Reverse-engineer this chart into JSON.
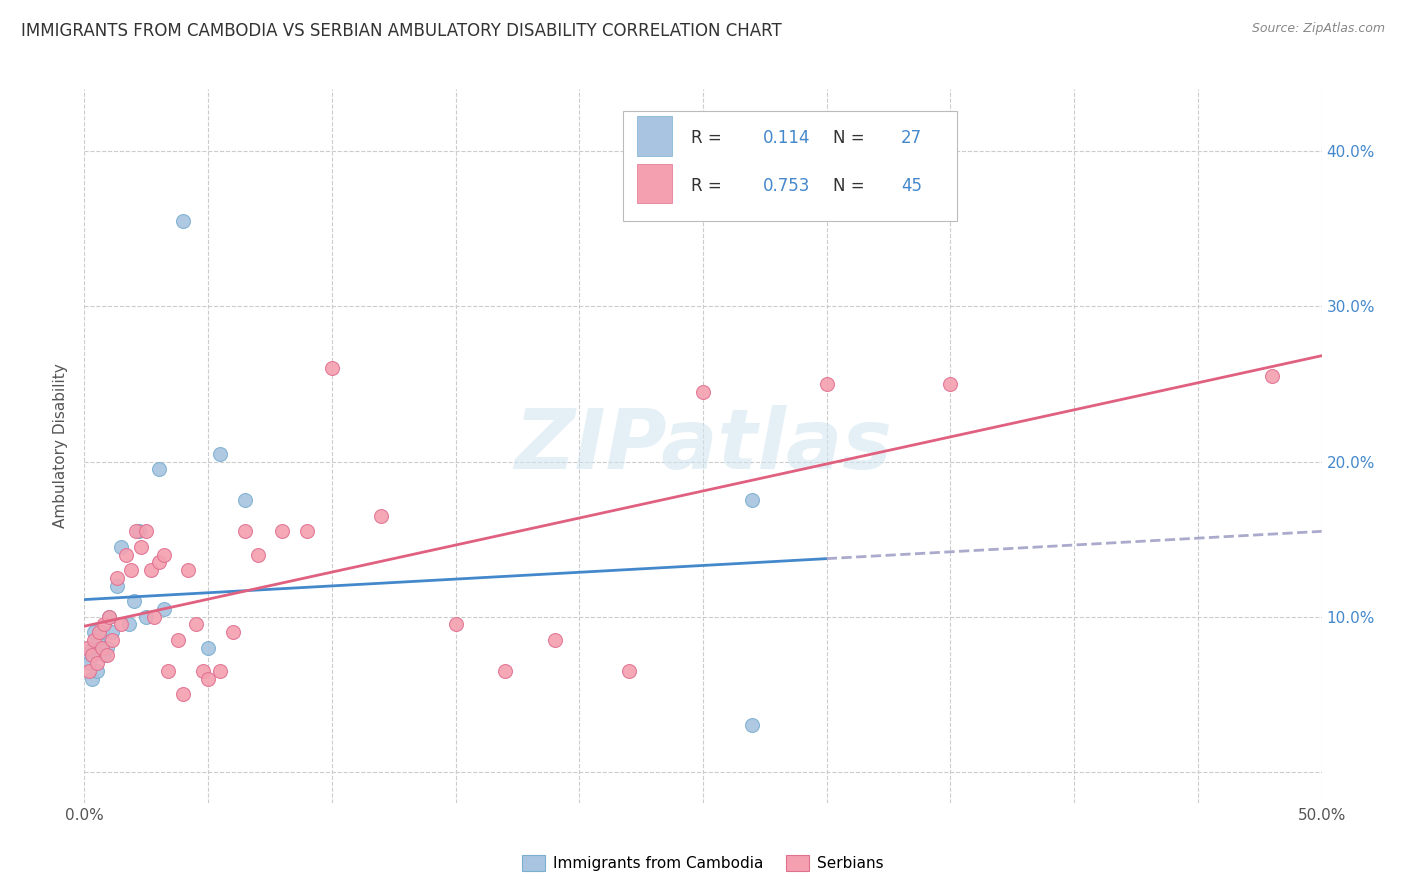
{
  "title": "IMMIGRANTS FROM CAMBODIA VS SERBIAN AMBULATORY DISABILITY CORRELATION CHART",
  "source": "Source: ZipAtlas.com",
  "ylabel": "Ambulatory Disability",
  "xlim": [
    0.0,
    0.5
  ],
  "ylim": [
    -0.02,
    0.44
  ],
  "cambodia_color": "#a8c4e0",
  "cambodia_edge_color": "#7aafd0",
  "serbian_color": "#f4a0b0",
  "serbian_edge_color": "#e07090",
  "cambodia_line_color": "#4488cc",
  "cambodia_dash_color": "#aaaacc",
  "serbian_line_color": "#e06080",
  "cambodia_R": "0.114",
  "cambodia_N": "27",
  "serbian_R": "0.753",
  "serbian_N": "45",
  "legend_label_1": "Immigrants from Cambodia",
  "legend_label_2": "Serbians",
  "watermark": "ZIPatlas",
  "right_yaxis_color": "#4488cc",
  "cambodia_x": [
    0.001,
    0.002,
    0.003,
    0.003,
    0.004,
    0.005,
    0.005,
    0.006,
    0.007,
    0.008,
    0.009,
    0.01,
    0.011,
    0.013,
    0.015,
    0.018,
    0.02,
    0.022,
    0.025,
    0.03,
    0.032,
    0.04,
    0.05,
    0.055,
    0.065,
    0.27,
    0.27
  ],
  "cambodia_y": [
    0.075,
    0.07,
    0.08,
    0.06,
    0.09,
    0.085,
    0.065,
    0.08,
    0.09,
    0.075,
    0.08,
    0.1,
    0.09,
    0.12,
    0.145,
    0.095,
    0.11,
    0.155,
    0.1,
    0.195,
    0.105,
    0.355,
    0.08,
    0.205,
    0.175,
    0.175,
    0.03
  ],
  "serbian_x": [
    0.001,
    0.002,
    0.003,
    0.004,
    0.005,
    0.006,
    0.007,
    0.008,
    0.009,
    0.01,
    0.011,
    0.013,
    0.015,
    0.017,
    0.019,
    0.021,
    0.023,
    0.025,
    0.027,
    0.028,
    0.03,
    0.032,
    0.034,
    0.038,
    0.04,
    0.042,
    0.045,
    0.048,
    0.05,
    0.055,
    0.06,
    0.065,
    0.07,
    0.08,
    0.09,
    0.1,
    0.12,
    0.15,
    0.17,
    0.19,
    0.22,
    0.25,
    0.3,
    0.35,
    0.48
  ],
  "serbian_y": [
    0.08,
    0.065,
    0.075,
    0.085,
    0.07,
    0.09,
    0.08,
    0.095,
    0.075,
    0.1,
    0.085,
    0.125,
    0.095,
    0.14,
    0.13,
    0.155,
    0.145,
    0.155,
    0.13,
    0.1,
    0.135,
    0.14,
    0.065,
    0.085,
    0.05,
    0.13,
    0.095,
    0.065,
    0.06,
    0.065,
    0.09,
    0.155,
    0.14,
    0.155,
    0.155,
    0.26,
    0.165,
    0.095,
    0.065,
    0.085,
    0.065,
    0.245,
    0.25,
    0.25,
    0.255
  ],
  "background_color": "#ffffff",
  "grid_color": "#cccccc"
}
